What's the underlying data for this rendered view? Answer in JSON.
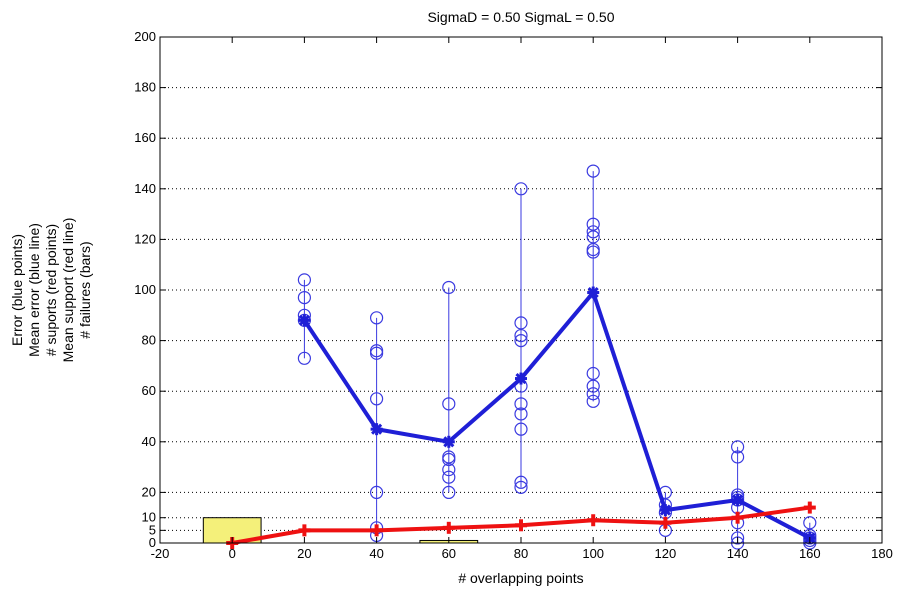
{
  "chart_data": {
    "type": "line",
    "title": "SigmaD = 0.50 SigmaL = 0.50",
    "xlabel": "# overlapping points",
    "ylabel_lines": [
      "Error (blue points)",
      "Mean error (blue line)",
      "# suports (red points)",
      "Mean support (red line)",
      "# failures (bars)"
    ],
    "xlim": [
      -20,
      180
    ],
    "ylim": [
      0,
      200
    ],
    "x_ticks": [
      -20,
      0,
      20,
      40,
      60,
      80,
      100,
      120,
      140,
      160,
      180
    ],
    "y_ticks": [
      0,
      5,
      10,
      20,
      40,
      60,
      80,
      100,
      120,
      140,
      160,
      180,
      200
    ],
    "grid": "horizontal dotted",
    "colors": {
      "mean_error": "#1f1fd6",
      "error_points": "#3a3ae0",
      "mean_support": "#ee1111",
      "bars": "#f4f07a",
      "bar_edge": "#000000"
    },
    "bars": [
      {
        "x": 0,
        "value": 10
      },
      {
        "x": 60,
        "value": 1
      }
    ],
    "mean_error": {
      "x": [
        20,
        40,
        60,
        80,
        100,
        120,
        140,
        160
      ],
      "y": [
        88,
        45,
        40,
        65,
        99,
        13,
        17,
        2
      ]
    },
    "mean_support": {
      "x": [
        0,
        20,
        40,
        60,
        80,
        100,
        120,
        140,
        160
      ],
      "y": [
        0,
        5,
        5,
        6,
        7,
        9,
        8,
        10,
        14
      ]
    },
    "error_points": [
      {
        "x": 20,
        "values": [
          104,
          97,
          90,
          88,
          73
        ]
      },
      {
        "x": 40,
        "values": [
          89,
          76,
          75,
          57,
          20,
          6,
          3
        ]
      },
      {
        "x": 60,
        "values": [
          101,
          55,
          34,
          33,
          29,
          26,
          20
        ]
      },
      {
        "x": 80,
        "values": [
          140,
          87,
          82,
          80,
          62,
          55,
          51,
          45,
          24,
          22
        ]
      },
      {
        "x": 100,
        "values": [
          147,
          126,
          123,
          121,
          116,
          115,
          67,
          62,
          59,
          56
        ]
      },
      {
        "x": 120,
        "values": [
          20,
          15,
          12,
          5
        ]
      },
      {
        "x": 140,
        "values": [
          38,
          34,
          19,
          18,
          17,
          14,
          8,
          2,
          0
        ]
      },
      {
        "x": 160,
        "values": [
          8,
          3,
          2,
          1,
          0
        ]
      }
    ]
  }
}
